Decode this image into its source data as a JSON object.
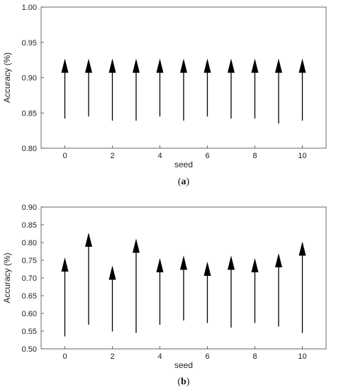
{
  "chart_data": [
    {
      "type": "arrow",
      "caption": "a",
      "xlabel": "seed",
      "ylabel": "Accuracy (%)",
      "xlim": [
        -1,
        11
      ],
      "ylim": [
        0.8,
        1.0
      ],
      "xticks": [
        0,
        2,
        4,
        6,
        8,
        10
      ],
      "yticks": [
        0.8,
        0.85,
        0.9,
        0.95,
        1.0
      ],
      "ytick_labels": [
        "0.80",
        "0.85",
        "0.90",
        "0.95",
        "1.00"
      ],
      "grid": false,
      "x": [
        0,
        1,
        2,
        3,
        4,
        5,
        6,
        7,
        8,
        9,
        10
      ],
      "start": [
        0.842,
        0.845,
        0.839,
        0.839,
        0.845,
        0.839,
        0.845,
        0.842,
        0.842,
        0.835,
        0.839
      ],
      "end": [
        0.927,
        0.927,
        0.927,
        0.927,
        0.927,
        0.927,
        0.927,
        0.927,
        0.927,
        0.927,
        0.927
      ]
    },
    {
      "type": "arrow",
      "caption": "b",
      "xlabel": "seed",
      "ylabel": "Accuracy (%)",
      "xlim": [
        -1,
        11
      ],
      "ylim": [
        0.5,
        0.9
      ],
      "xticks": [
        0,
        2,
        4,
        6,
        8,
        10
      ],
      "yticks": [
        0.5,
        0.55,
        0.6,
        0.65,
        0.7,
        0.75,
        0.8,
        0.85,
        0.9
      ],
      "ytick_labels": [
        "0.50",
        "0.55",
        "0.60",
        "0.65",
        "0.70",
        "0.75",
        "0.80",
        "0.85",
        "0.90"
      ],
      "grid": false,
      "x": [
        0,
        1,
        2,
        3,
        4,
        5,
        6,
        7,
        8,
        9,
        10
      ],
      "start": [
        0.535,
        0.568,
        0.549,
        0.545,
        0.568,
        0.58,
        0.573,
        0.56,
        0.573,
        0.563,
        0.545
      ],
      "end": [
        0.758,
        0.828,
        0.735,
        0.811,
        0.756,
        0.763,
        0.746,
        0.763,
        0.756,
        0.77,
        0.803
      ]
    }
  ]
}
